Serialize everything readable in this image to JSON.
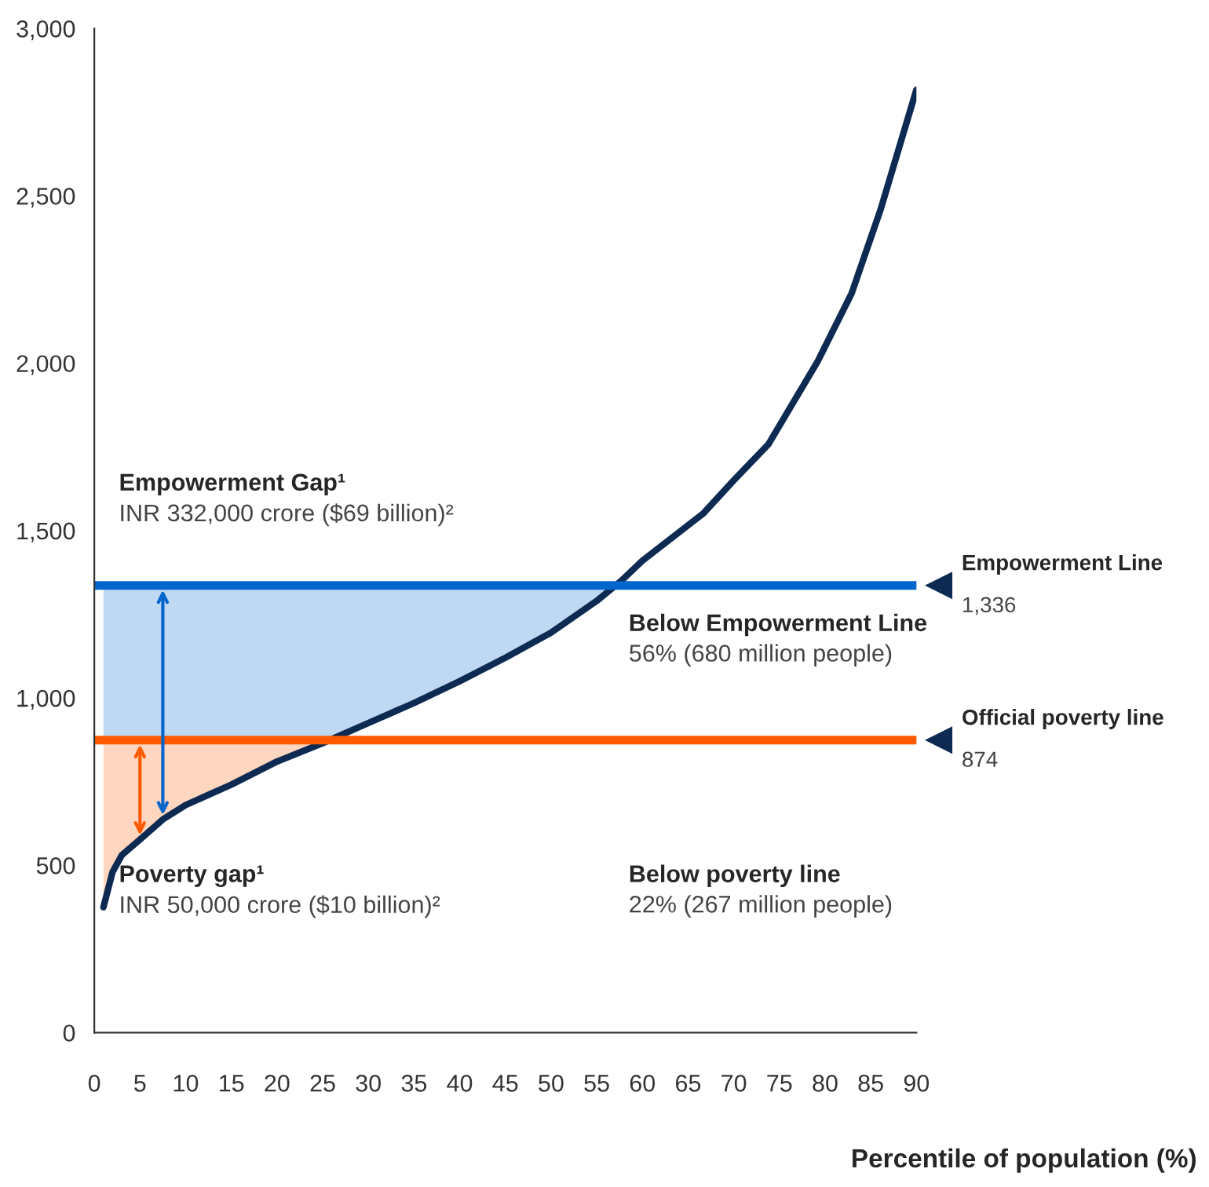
{
  "chart_data": {
    "type": "line",
    "xlabel": "Percentile of population (%)",
    "x": [
      1,
      2,
      3,
      5,
      7.5,
      10,
      15,
      20,
      25,
      30,
      35,
      40,
      45,
      50,
      55,
      57.7,
      60,
      66.7,
      70,
      73.8,
      79.2,
      82.9,
      86.1,
      90
    ],
    "series": [
      {
        "color": "#0d2b52",
        "values": [
          375,
          480,
          530,
          577,
          637,
          680,
          741,
          810,
          865,
          925,
          985,
          1050,
          1120,
          1195,
          1290,
          1350,
          1410,
          1552,
          1650,
          1758,
          2006,
          2208,
          2461,
          2817
        ]
      }
    ],
    "xlim": [
      0,
      90
    ],
    "xticks": [
      0,
      5,
      10,
      15,
      20,
      25,
      30,
      35,
      40,
      45,
      50,
      55,
      60,
      65,
      70,
      75,
      80,
      85,
      90
    ],
    "ylim": [
      0,
      3000
    ],
    "yticks": [
      {
        "value": 0,
        "label": "0"
      },
      {
        "value": 500,
        "label": "500"
      },
      {
        "value": 1000,
        "label": "1,000"
      },
      {
        "value": 1500,
        "label": "1,500"
      },
      {
        "value": 2000,
        "label": "2,000"
      },
      {
        "value": 2500,
        "label": "2,500"
      },
      {
        "value": 3000,
        "label": "3,000"
      }
    ],
    "ref_lines": [
      {
        "axis": "y",
        "value": 1336,
        "label": "Empowerment Line\n1,336",
        "color": "#0066cc"
      },
      {
        "axis": "y",
        "value": 874,
        "label": "Official poverty line\n874",
        "color": "#ff5a00"
      }
    ],
    "annotations": [
      "Empowerment Gap¹\nINR 332,000 crore ($69 billion)²",
      "Below Empowerment Line\n56% (680 million people)",
      "Poverty gap¹\nINR 50,000 crore ($10 billion)²",
      "Below poverty line\n22% (267 million people)"
    ],
    "grid": false,
    "legend": false,
    "marker": "none",
    "line_style": "solid"
  }
}
